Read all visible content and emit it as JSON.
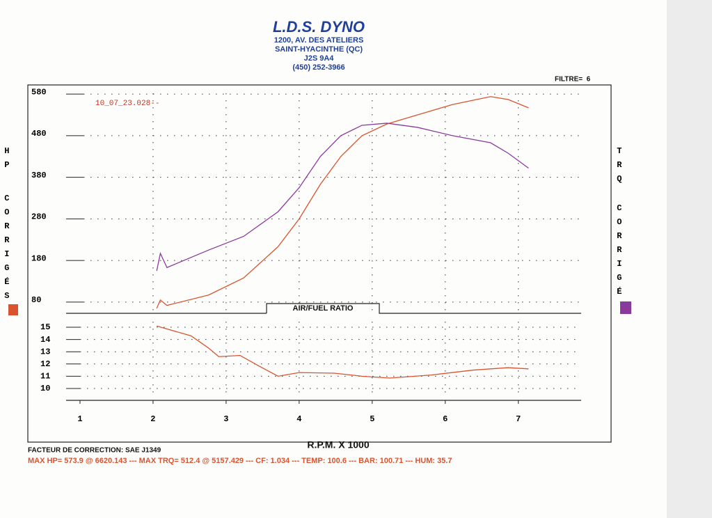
{
  "header": {
    "title": "L.D.S. DYNO",
    "address": [
      "1200, AV. DES ATELIERS",
      "SAINT-HYACINTHE (QC)",
      "J2S 9A4",
      "(450) 252-3966"
    ],
    "filter": "FILTRE=  6"
  },
  "chart_data": [
    {
      "type": "line",
      "label": "10_07_23.028--",
      "ylabel": [
        "HP",
        "CORRIGÉS"
      ],
      "y2label": [
        "TRQ",
        "CORRIGÉ"
      ],
      "x": [
        2.05,
        2.1,
        2.19,
        2.76,
        3.24,
        3.71,
        4.0,
        4.29,
        4.57,
        4.86,
        5.2,
        5.62,
        6.1,
        6.62,
        6.86,
        7.14
      ],
      "series": [
        {
          "color": "#d9532f",
          "values": [
            65,
            85,
            72,
            97,
            138,
            213,
            280,
            363,
            430,
            480,
            508,
            530,
            555,
            574,
            567,
            547
          ]
        },
        {
          "color": "#8a3a9a",
          "values": [
            155,
            197,
            163,
            205,
            238,
            297,
            355,
            430,
            480,
            505,
            510,
            500,
            480,
            463,
            438,
            402
          ]
        }
      ],
      "xlim": [
        0.81,
        7.86
      ],
      "ylim": [
        53,
        602
      ],
      "yticks": [
        80,
        180,
        280,
        380,
        480,
        580
      ],
      "grid": true
    },
    {
      "type": "line",
      "title": "AIR/FUEL RATIO",
      "xlabel": "R.P.M. X 1000",
      "x": [
        2.05,
        2.52,
        2.76,
        2.9,
        3.19,
        3.43,
        3.71,
        4.0,
        4.48,
        4.86,
        5.24,
        5.81,
        6.38,
        6.86,
        7.14
      ],
      "values": [
        15.1,
        14.3,
        13.3,
        12.6,
        12.7,
        11.9,
        11.0,
        11.3,
        11.25,
        11.0,
        10.85,
        11.1,
        11.5,
        11.7,
        11.6
      ],
      "color": "#d9532f",
      "xlim": [
        0.81,
        7.86
      ],
      "xticks": [
        1,
        2,
        3,
        4,
        5,
        6,
        7
      ],
      "ylim": [
        9.03,
        16.14
      ],
      "yticks": [
        10,
        11,
        12,
        13,
        14,
        15
      ],
      "grid": true
    }
  ],
  "footer": {
    "correction": "FACTEUR DE CORRECTION: SAE J1349",
    "summary": "MAX HP= 573.9 @ 6620.143 --- MAX TRQ= 512.4 @ 5157.429 --- CF: 1.034 --- TEMP: 100.6 --- BAR: 100.71 --- HUM: 35.7"
  }
}
